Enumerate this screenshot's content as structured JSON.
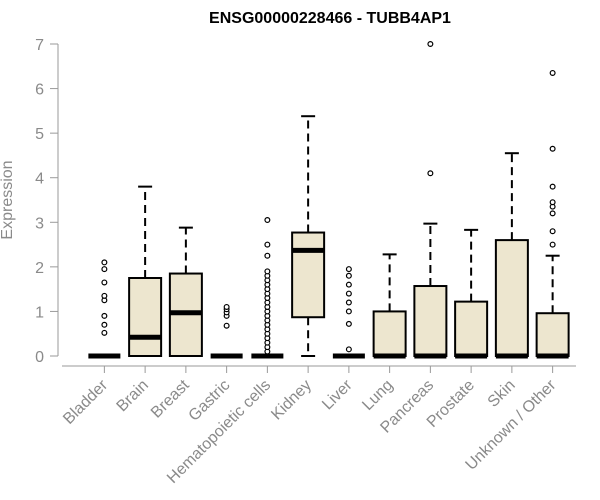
{
  "chart_data": {
    "type": "box",
    "title": "ENSG00000228466 - TUBB4AP1",
    "xlabel": "",
    "ylabel": "Expression",
    "ylim": [
      0,
      7
    ],
    "yticks": [
      0,
      1,
      2,
      3,
      4,
      5,
      6,
      7
    ],
    "grid": false,
    "legend": "none",
    "box_fill": "#ede6cf",
    "outline_color": "#000000",
    "categories": [
      "Bladder",
      "Brain",
      "Breast",
      "Gastric",
      "Hematopoietic cells",
      "Kidney",
      "Liver",
      "Lung",
      "Pancreas",
      "Prostate",
      "Skin",
      "Unknown / Other"
    ],
    "boxes": [
      {
        "min": 0,
        "q1": 0,
        "median": 0,
        "q3": 0,
        "max": 0,
        "outliers": [
          0.52,
          0.7,
          0.9,
          1.25,
          1.35,
          1.65,
          1.95,
          2.1
        ]
      },
      {
        "min": 0,
        "q1": 0,
        "median": 0.42,
        "q3": 1.75,
        "max": 3.8,
        "outliers": []
      },
      {
        "min": 0,
        "q1": 0,
        "median": 0.97,
        "q3": 1.85,
        "max": 2.88,
        "outliers": []
      },
      {
        "min": 0,
        "q1": 0,
        "median": 0,
        "q3": 0,
        "max": 0,
        "outliers": [
          0.68,
          0.9,
          0.98,
          1.05,
          1.1
        ]
      },
      {
        "min": 0,
        "q1": 0,
        "median": 0,
        "q3": 0,
        "max": 0,
        "outliers": [
          0.1,
          0.2,
          0.3,
          0.4,
          0.5,
          0.6,
          0.7,
          0.8,
          0.9,
          1.0,
          1.1,
          1.2,
          1.3,
          1.4,
          1.5,
          1.6,
          1.7,
          1.8,
          1.9,
          2.25,
          2.5,
          3.05
        ]
      },
      {
        "min": 0,
        "q1": 0.87,
        "median": 2.37,
        "q3": 2.77,
        "max": 5.38,
        "outliers": []
      },
      {
        "min": 0,
        "q1": 0,
        "median": 0,
        "q3": 0,
        "max": 0,
        "outliers": [
          0.15,
          0.72,
          1.0,
          1.2,
          1.4,
          1.6,
          1.8,
          1.95
        ]
      },
      {
        "min": 0,
        "q1": 0,
        "median": 0,
        "q3": 1.0,
        "max": 2.28,
        "outliers": []
      },
      {
        "min": 0,
        "q1": 0,
        "median": 0,
        "q3": 1.57,
        "max": 2.97,
        "outliers": [
          4.1,
          7.0
        ]
      },
      {
        "min": 0,
        "q1": 0,
        "median": 0,
        "q3": 1.22,
        "max": 2.83,
        "outliers": []
      },
      {
        "min": 0,
        "q1": 0,
        "median": 0,
        "q3": 2.6,
        "max": 4.55,
        "outliers": []
      },
      {
        "min": 0,
        "q1": 0,
        "median": 0,
        "q3": 0.96,
        "max": 2.25,
        "outliers": [
          2.5,
          2.8,
          3.2,
          3.35,
          3.45,
          3.8,
          4.65,
          6.35
        ]
      }
    ]
  }
}
